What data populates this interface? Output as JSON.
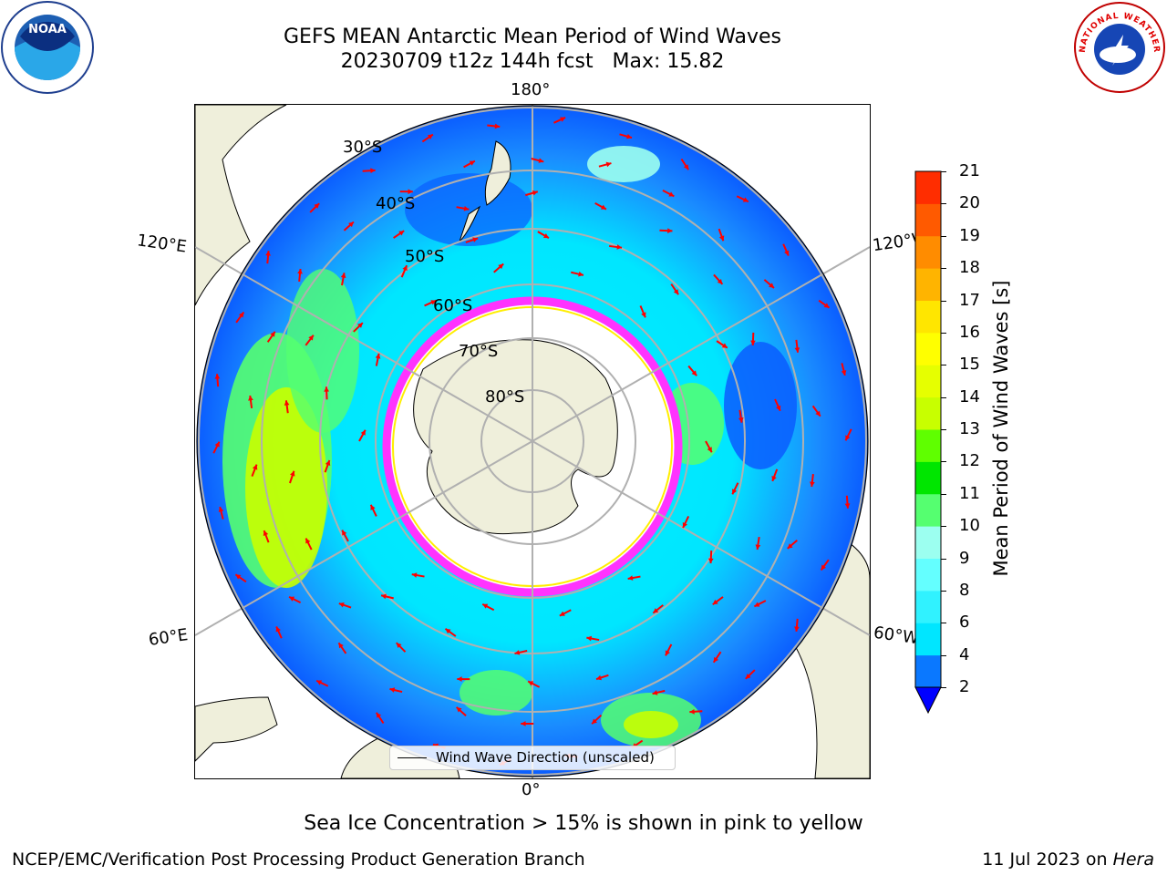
{
  "title": {
    "line1": "GEFS MEAN Antarctic Mean Period of Wind Waves",
    "line2": "20230709 t12z 144h fcst   Max: 15.82"
  },
  "colorbar": {
    "label": "Mean Period of Wind Waves [s]",
    "ticks": [
      "2",
      "4",
      "6",
      "8",
      "9",
      "10",
      "11",
      "12",
      "13",
      "14",
      "15",
      "16",
      "17",
      "18",
      "19",
      "20",
      "21"
    ],
    "colors": [
      "#0a78ff",
      "#00e6ff",
      "#30f2ff",
      "#64ffff",
      "#9cfff0",
      "#55ff70",
      "#00e600",
      "#5fff00",
      "#c8ff00",
      "#e6ff00",
      "#ffff00",
      "#ffe600",
      "#ffb400",
      "#ff8c00",
      "#ff5a00",
      "#ff2d00"
    ],
    "under_color": "#0000ff"
  },
  "map": {
    "lon_labels": [
      "180°",
      "120°E",
      "120°W",
      "60°E",
      "60°W",
      "0°"
    ],
    "lat_labels": [
      "30°S",
      "40°S",
      "50°S",
      "60°S",
      "70°S",
      "80°S"
    ],
    "land_color": "#efefdb",
    "ice_edge_colors": [
      "#ff33ff",
      "#ff66cc",
      "#ffee00"
    ]
  },
  "legend": {
    "label": "Wind Wave Direction (unscaled)"
  },
  "note": "Sea Ice Concentration > 15% is shown in pink to yellow",
  "footer": {
    "left": "NCEP/EMC/Verification Post Processing Product Generation Branch",
    "date": "11 Jul 2023 on ",
    "host": "Hera"
  },
  "logos": {
    "noaa": "NOAA",
    "nws": "NATIONAL WEATHER SERVICE"
  }
}
